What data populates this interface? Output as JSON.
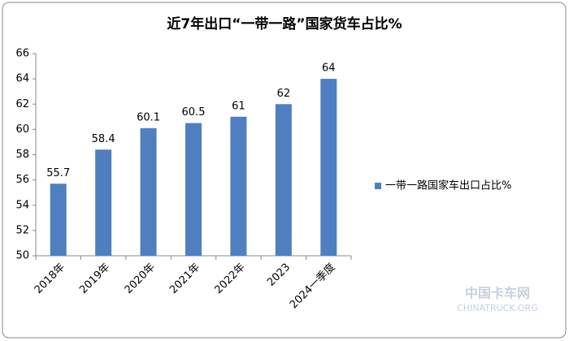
{
  "chart_data": {
    "type": "bar",
    "title": "近7年出口“一带一路”国家货车占比%",
    "categories": [
      "2018年",
      "2019年",
      "2020年",
      "2021年",
      "2022年",
      "2023",
      "2024一季度"
    ],
    "series": [
      {
        "name": "一带一路国家车出口占比%",
        "color": "#4f7fc0",
        "values": [
          55.7,
          58.4,
          60.1,
          60.5,
          61,
          62,
          64
        ]
      }
    ],
    "ylim": [
      50,
      66
    ],
    "yticks": [
      50,
      52,
      54,
      56,
      58,
      60,
      62,
      64,
      66
    ],
    "grid": false,
    "legend": "right"
  },
  "watermark": [
    "中国卡车网",
    "CHINATRUCK.ORG"
  ]
}
